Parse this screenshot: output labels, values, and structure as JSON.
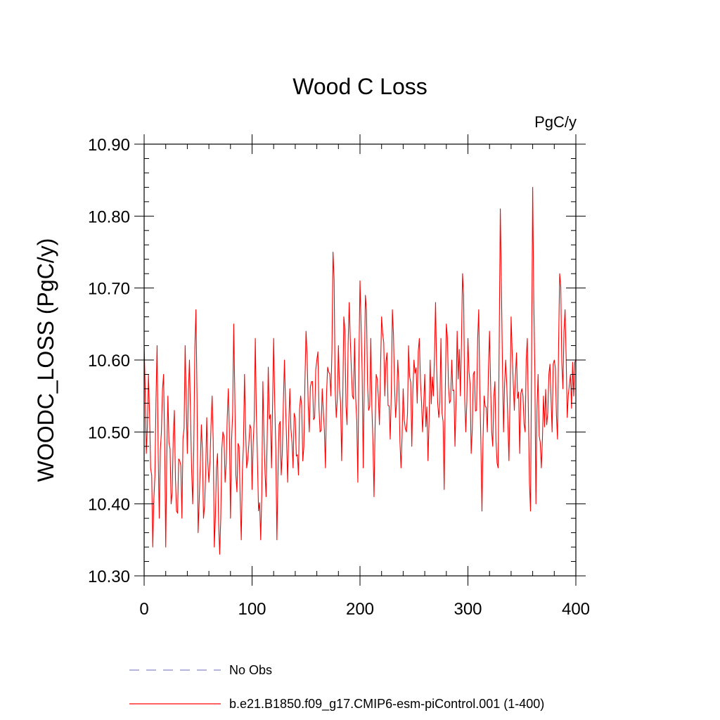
{
  "chart_data": {
    "type": "line",
    "title": "Wood C Loss",
    "units_label": "PgC/y",
    "xlabel": "",
    "ylabel": "WOODC_LOSS  (PgC/y)",
    "xlim": [
      0,
      400
    ],
    "ylim": [
      10.3,
      10.9
    ],
    "x_ticks": [
      0,
      100,
      200,
      300,
      400
    ],
    "x_tick_labels": [
      "0",
      "100",
      "200",
      "300",
      "400"
    ],
    "y_ticks": [
      10.3,
      10.4,
      10.5,
      10.6,
      10.7,
      10.8,
      10.9
    ],
    "y_tick_labels": [
      "10.30",
      "10.40",
      "10.50",
      "10.60",
      "10.70",
      "10.80",
      "10.90"
    ],
    "grid": false,
    "legend": [
      {
        "label": "No Obs",
        "style": "dashed",
        "color": "#8888cc"
      },
      {
        "label": "b.e21.B1850.f09_g17.CMIP6-esm-piControl.001 (1-400)",
        "style": "solid",
        "color": "#ff0000"
      }
    ],
    "series": [
      {
        "name": "b.e21.B1850.f09_g17.CMIP6-esm-piControl.001 (1-400)",
        "color": "#ff0000",
        "keypoints": [
          [
            0,
            10.62
          ],
          [
            2,
            10.47
          ],
          [
            4,
            10.58
          ],
          [
            6,
            10.45
          ],
          [
            8,
            10.34
          ],
          [
            10,
            10.44
          ],
          [
            12,
            10.62
          ],
          [
            14,
            10.38
          ],
          [
            16,
            10.5
          ],
          [
            18,
            10.58
          ],
          [
            20,
            10.34
          ],
          [
            22,
            10.55
          ],
          [
            25,
            10.4
          ],
          [
            28,
            10.53
          ],
          [
            30,
            10.39
          ],
          [
            33,
            10.46
          ],
          [
            35,
            10.38
          ],
          [
            38,
            10.62
          ],
          [
            40,
            10.47
          ],
          [
            42,
            10.6
          ],
          [
            45,
            10.4
          ],
          [
            48,
            10.67
          ],
          [
            50,
            10.36
          ],
          [
            53,
            10.51
          ],
          [
            55,
            10.38
          ],
          [
            58,
            10.52
          ],
          [
            60,
            10.43
          ],
          [
            63,
            10.55
          ],
          [
            65,
            10.34
          ],
          [
            68,
            10.47
          ],
          [
            70,
            10.33
          ],
          [
            73,
            10.5
          ],
          [
            75,
            10.43
          ],
          [
            78,
            10.56
          ],
          [
            80,
            10.38
          ],
          [
            83,
            10.65
          ],
          [
            85,
            10.44
          ],
          [
            88,
            10.48
          ],
          [
            90,
            10.35
          ],
          [
            93,
            10.58
          ],
          [
            95,
            10.45
          ],
          [
            98,
            10.51
          ],
          [
            100,
            10.42
          ],
          [
            103,
            10.63
          ],
          [
            105,
            10.46
          ],
          [
            108,
            10.35
          ],
          [
            110,
            10.57
          ],
          [
            113,
            10.41
          ],
          [
            115,
            10.59
          ],
          [
            118,
            10.45
          ],
          [
            120,
            10.63
          ],
          [
            123,
            10.35
          ],
          [
            125,
            10.51
          ],
          [
            128,
            10.47
          ],
          [
            130,
            10.6
          ],
          [
            133,
            10.43
          ],
          [
            135,
            10.56
          ],
          [
            138,
            10.45
          ],
          [
            140,
            10.52
          ],
          [
            143,
            10.44
          ],
          [
            145,
            10.55
          ],
          [
            148,
            10.48
          ],
          [
            150,
            10.64
          ],
          [
            153,
            10.5
          ],
          [
            155,
            10.57
          ],
          [
            158,
            10.52
          ],
          [
            160,
            10.6
          ],
          [
            163,
            10.5
          ],
          [
            165,
            10.56
          ],
          [
            168,
            10.45
          ],
          [
            170,
            10.59
          ],
          [
            173,
            10.55
          ],
          [
            175,
            10.75
          ],
          [
            178,
            10.52
          ],
          [
            180,
            10.62
          ],
          [
            183,
            10.46
          ],
          [
            185,
            10.66
          ],
          [
            188,
            10.51
          ],
          [
            190,
            10.68
          ],
          [
            193,
            10.55
          ],
          [
            195,
            10.63
          ],
          [
            198,
            10.43
          ],
          [
            200,
            10.71
          ],
          [
            203,
            10.45
          ],
          [
            205,
            10.69
          ],
          [
            208,
            10.53
          ],
          [
            210,
            10.63
          ],
          [
            213,
            10.41
          ],
          [
            215,
            10.58
          ],
          [
            218,
            10.51
          ],
          [
            220,
            10.66
          ],
          [
            223,
            10.55
          ],
          [
            225,
            10.61
          ],
          [
            228,
            10.49
          ],
          [
            230,
            10.67
          ],
          [
            233,
            10.52
          ],
          [
            235,
            10.6
          ],
          [
            238,
            10.45
          ],
          [
            240,
            10.56
          ],
          [
            243,
            10.5
          ],
          [
            245,
            10.62
          ],
          [
            248,
            10.48
          ],
          [
            250,
            10.6
          ],
          [
            253,
            10.54
          ],
          [
            255,
            10.63
          ],
          [
            258,
            10.5
          ],
          [
            260,
            10.58
          ],
          [
            263,
            10.46
          ],
          [
            265,
            10.6
          ],
          [
            268,
            10.55
          ],
          [
            270,
            10.68
          ],
          [
            273,
            10.52
          ],
          [
            275,
            10.63
          ],
          [
            278,
            10.42
          ],
          [
            280,
            10.65
          ],
          [
            283,
            10.54
          ],
          [
            285,
            10.6
          ],
          [
            288,
            10.48
          ],
          [
            290,
            10.64
          ],
          [
            293,
            10.55
          ],
          [
            295,
            10.72
          ],
          [
            298,
            10.5
          ],
          [
            300,
            10.63
          ],
          [
            303,
            10.47
          ],
          [
            305,
            10.58
          ],
          [
            308,
            10.53
          ],
          [
            310,
            10.67
          ],
          [
            313,
            10.39
          ],
          [
            315,
            10.55
          ],
          [
            318,
            10.5
          ],
          [
            320,
            10.64
          ],
          [
            323,
            10.48
          ],
          [
            325,
            10.57
          ],
          [
            328,
            10.45
          ],
          [
            330,
            10.81
          ],
          [
            333,
            10.5
          ],
          [
            335,
            10.6
          ],
          [
            338,
            10.46
          ],
          [
            340,
            10.66
          ],
          [
            343,
            10.53
          ],
          [
            345,
            10.61
          ],
          [
            348,
            10.47
          ],
          [
            350,
            10.56
          ],
          [
            353,
            10.5
          ],
          [
            355,
            10.63
          ],
          [
            358,
            10.39
          ],
          [
            360,
            10.84
          ],
          [
            363,
            10.4
          ],
          [
            365,
            10.58
          ],
          [
            368,
            10.45
          ],
          [
            370,
            10.55
          ],
          [
            373,
            10.51
          ],
          [
            375,
            10.58
          ],
          [
            378,
            10.5
          ],
          [
            380,
            10.6
          ],
          [
            383,
            10.49
          ],
          [
            385,
            10.72
          ],
          [
            388,
            10.56
          ],
          [
            390,
            10.67
          ],
          [
            392,
            10.52
          ],
          [
            395,
            10.58
          ],
          [
            398,
            10.55
          ],
          [
            400,
            10.6
          ]
        ]
      }
    ]
  }
}
